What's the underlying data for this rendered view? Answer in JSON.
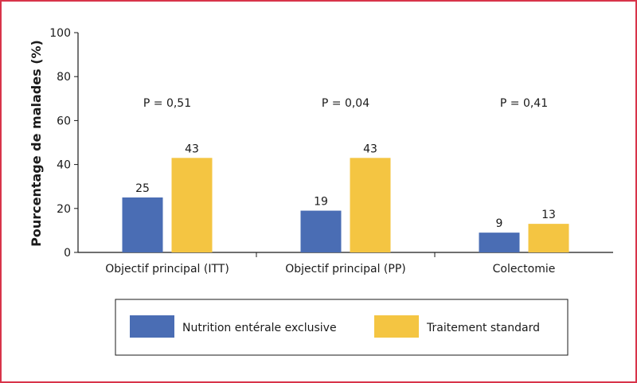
{
  "chart_data": {
    "type": "bar",
    "ylabel": "Pourcentage de malades (%)",
    "ylim": [
      0,
      100
    ],
    "yticks": [
      0,
      20,
      40,
      60,
      80,
      100
    ],
    "categories": [
      "Objectif principal (ITT)",
      "Objectif principal (PP)",
      "Colectomie"
    ],
    "p_values": [
      "P = 0,51",
      "P = 0,04",
      "P = 0,41"
    ],
    "series": [
      {
        "name": "Nutrition entérale exclusive",
        "values": [
          25,
          19,
          9
        ],
        "color": "#4a6db4"
      },
      {
        "name": "Traitement standard",
        "values": [
          43,
          43,
          13
        ],
        "color": "#f4c542"
      }
    ],
    "legend_position": "bottom",
    "grid": false
  }
}
